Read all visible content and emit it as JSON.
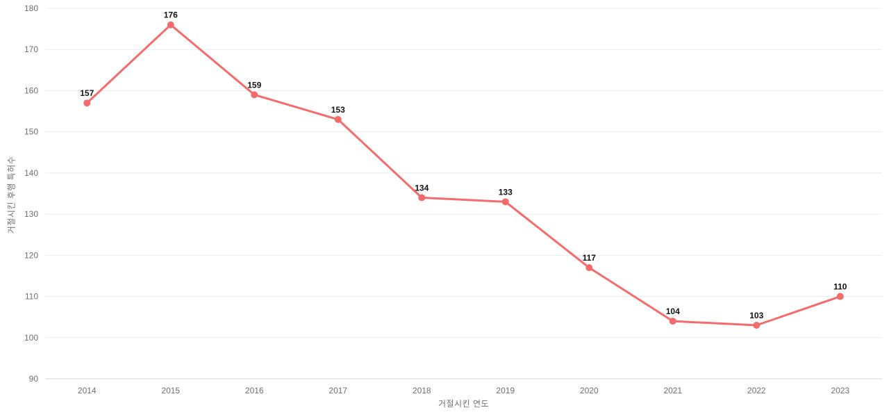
{
  "chart_data": {
    "type": "line",
    "categories": [
      "2014",
      "2015",
      "2016",
      "2017",
      "2018",
      "2019",
      "2020",
      "2021",
      "2022",
      "2023"
    ],
    "values": [
      157,
      176,
      159,
      153,
      134,
      133,
      117,
      104,
      103,
      110
    ],
    "title": "",
    "xlabel": "거절시킨 연도",
    "ylabel": "거절시킨 후행 특허수",
    "ylim": [
      90,
      180
    ],
    "y_ticks": [
      90,
      100,
      110,
      120,
      130,
      140,
      150,
      160,
      170,
      180
    ],
    "grid": true,
    "legend_position": "none",
    "data_labels_shown": true,
    "colors": {
      "line": "#f56a6a",
      "marker": "#f56a6a",
      "gridline": "#ececec",
      "axis_baseline": "#ccd6dd",
      "tick_label": "#6e6e6e",
      "axis_title": "#6e6e6e",
      "data_label": "#111111",
      "background": "#ffffff"
    }
  }
}
